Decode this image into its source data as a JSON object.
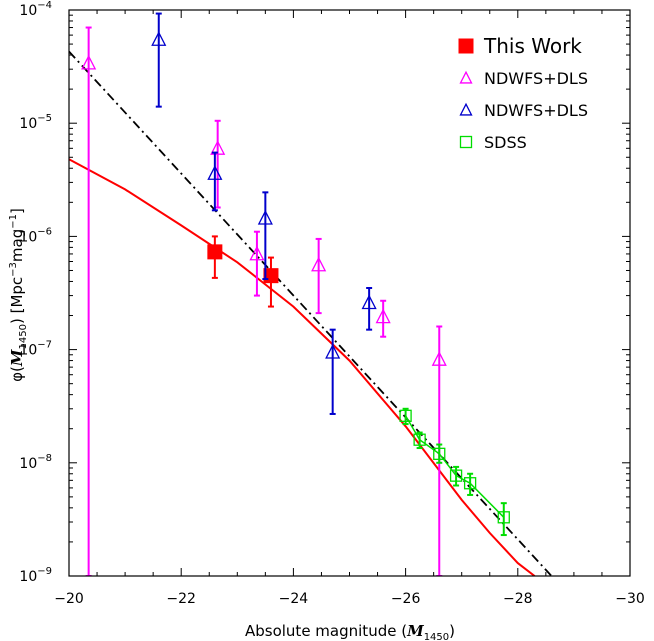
{
  "chart_data": {
    "type": "scatter",
    "title": "",
    "xlabel": "Absolute magnitude (",
    "xlabel_var": "M",
    "xlabel_sub": "1450",
    "xlabel_close": ")",
    "ylabel": "φ(",
    "ylabel_var": "M",
    "ylabel_sub": "1450",
    "ylabel_mid": ") [Mpc",
    "ylabel_sup1": "−3",
    "ylabel_mag": "mag",
    "ylabel_sup2": "−1",
    "ylabel_close": "]",
    "xlim": [
      -20,
      -30
    ],
    "ylim": [
      1e-09,
      0.0001
    ],
    "yscale": "log",
    "grid": false,
    "legend_position": "top-right",
    "x_ticks": [
      {
        "value": -20,
        "label": "−20"
      },
      {
        "value": -22,
        "label": "−22"
      },
      {
        "value": -24,
        "label": "−24"
      },
      {
        "value": -26,
        "label": "−26"
      },
      {
        "value": -28,
        "label": "−28"
      },
      {
        "value": -30,
        "label": "−30"
      }
    ],
    "y_ticks": [
      {
        "exp": -9,
        "base": "10",
        "sup": "−9"
      },
      {
        "exp": -8,
        "base": "10",
        "sup": "−8"
      },
      {
        "exp": -7,
        "base": "10",
        "sup": "−7"
      },
      {
        "exp": -6,
        "base": "10",
        "sup": "−6"
      },
      {
        "exp": -5,
        "base": "10",
        "sup": "−5"
      },
      {
        "exp": -4,
        "base": "10",
        "sup": "−4"
      }
    ],
    "series": [
      {
        "name": "This Work",
        "marker": "filled-square",
        "color": "#ff0000",
        "points": [
          {
            "x": -22.6,
            "y": 7.3e-07,
            "ylo": 4.3e-07,
            "yhi": 1e-06
          },
          {
            "x": -23.6,
            "y": 4.5e-07,
            "ylo": 2.4e-07,
            "yhi": 6.5e-07
          }
        ]
      },
      {
        "name": "NDWFS+DLS",
        "marker": "triangle",
        "color": "#ff00ff",
        "points": [
          {
            "x": -20.35,
            "y": 3.4e-05,
            "ylo": 1e-09,
            "yhi": 7e-05
          },
          {
            "x": -22.65,
            "y": 6e-06,
            "ylo": 1.8e-06,
            "yhi": 1.05e-05
          },
          {
            "x": -23.35,
            "y": 7e-07,
            "ylo": 3e-07,
            "yhi": 1.1e-06
          },
          {
            "x": -24.45,
            "y": 5.6e-07,
            "ylo": 2.1e-07,
            "yhi": 9.5e-07
          },
          {
            "x": -25.6,
            "y": 1.95e-07,
            "ylo": 1.3e-07,
            "yhi": 2.7e-07
          },
          {
            "x": -26.6,
            "y": 8.2e-08,
            "ylo": 1e-09,
            "yhi": 1.6e-07
          }
        ]
      },
      {
        "name": "NDWFS+DLS",
        "marker": "triangle",
        "color": "#0000cc",
        "points": [
          {
            "x": -21.6,
            "y": 5.5e-05,
            "ylo": 1.4e-05,
            "yhi": 9.3e-05
          },
          {
            "x": -22.6,
            "y": 3.6e-06,
            "ylo": 1.7e-06,
            "yhi": 5.5e-06
          },
          {
            "x": -23.5,
            "y": 1.45e-06,
            "ylo": 4.2e-07,
            "yhi": 2.45e-06
          },
          {
            "x": -24.7,
            "y": 9.5e-08,
            "ylo": 2.7e-08,
            "yhi": 1.5e-07
          },
          {
            "x": -25.35,
            "y": 2.6e-07,
            "ylo": 1.5e-07,
            "yhi": 3.5e-07
          }
        ]
      },
      {
        "name": "SDSS",
        "marker": "open-square",
        "color": "#00dd00",
        "connect": true,
        "points": [
          {
            "x": -26.0,
            "y": 2.6e-08,
            "ylo": 2.2e-08,
            "yhi": 3e-08
          },
          {
            "x": -26.25,
            "y": 1.6e-08,
            "ylo": 1.35e-08,
            "yhi": 1.85e-08
          },
          {
            "x": -26.6,
            "y": 1.2e-08,
            "ylo": 1e-08,
            "yhi": 1.45e-08
          },
          {
            "x": -26.9,
            "y": 7.7e-09,
            "ylo": 6.3e-09,
            "yhi": 9.2e-09
          },
          {
            "x": -27.15,
            "y": 6.6e-09,
            "ylo": 5.2e-09,
            "yhi": 8e-09
          },
          {
            "x": -27.75,
            "y": 3.3e-09,
            "ylo": 2.3e-09,
            "yhi": 4.4e-09
          }
        ]
      }
    ],
    "curves": [
      {
        "style": "solid",
        "color": "#ff0000",
        "points": [
          [
            -20,
            4.8e-06
          ],
          [
            -21,
            2.6e-06
          ],
          [
            -22,
            1.25e-06
          ],
          [
            -23,
            5.9e-07
          ],
          [
            -24,
            2.4e-07
          ],
          [
            -25,
            8e-08
          ],
          [
            -26,
            2.1e-08
          ],
          [
            -27,
            4.7e-09
          ],
          [
            -27.5,
            2.4e-09
          ],
          [
            -28,
            1.3e-09
          ],
          [
            -28.3,
            1e-09
          ]
        ]
      },
      {
        "style": "dashdot",
        "color": "#000000",
        "points": [
          [
            -20,
            4.3e-05
          ],
          [
            -28.6,
            1e-09
          ]
        ]
      }
    ]
  }
}
